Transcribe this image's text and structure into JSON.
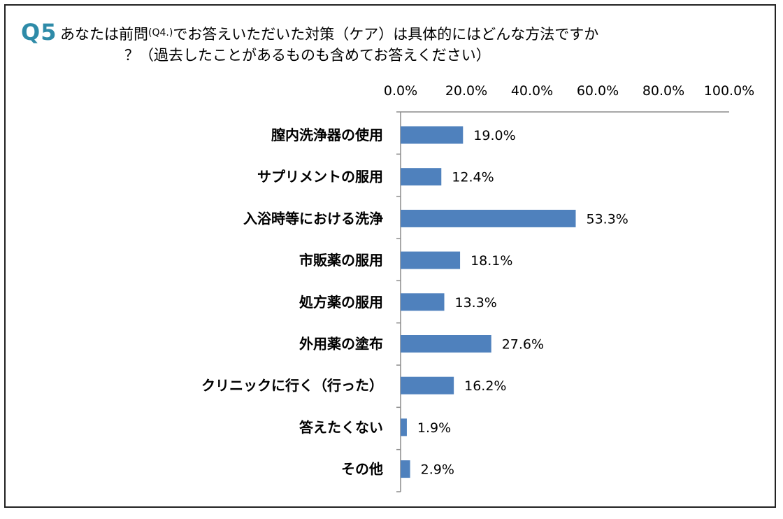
{
  "title": {
    "number": "Q5",
    "line1_a": "あなたは前問",
    "line1_sub": "(Q4.)",
    "line1_b": "でお答えいただいた対策（ケア）は具体的にはどんな方法ですか",
    "line2": "？（過去したことがあるものも含めてお答えください）"
  },
  "chart_data": {
    "type": "bar",
    "orientation": "horizontal",
    "categories": [
      "膣内洗浄器の使用",
      "サプリメントの服用",
      "入浴時等における洗浄",
      "市販薬の服用",
      "処方薬の服用",
      "外用薬の塗布",
      "クリニックに行く（行った）",
      "答えたくない",
      "その他"
    ],
    "values": [
      19.0,
      12.4,
      53.3,
      18.1,
      13.3,
      27.6,
      16.2,
      1.9,
      2.9
    ],
    "value_labels": [
      "19.0%",
      "12.4%",
      "53.3%",
      "18.1%",
      "13.3%",
      "27.6%",
      "16.2%",
      "1.9%",
      "2.9%"
    ],
    "xlim": [
      0,
      100
    ],
    "ticks": [
      0,
      20,
      40,
      60,
      80,
      100
    ],
    "tick_labels": [
      "0.0%",
      "20.0%",
      "40.0%",
      "60.0%",
      "80.0%",
      "100.0%"
    ],
    "axis_position": "top",
    "grid": false,
    "bar_color": "#4f81bd"
  }
}
